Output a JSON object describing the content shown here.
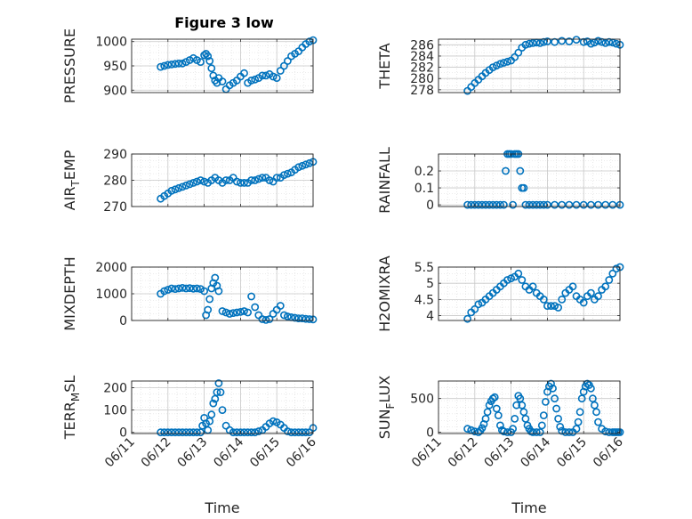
{
  "chart_data": [
    {
      "type": "scatter",
      "title": "Figure 3 low",
      "ylabel": "PRESSURE",
      "xlabel": "",
      "xlim": [
        0,
        5
      ],
      "ylim": [
        895,
        1005
      ],
      "yticks": [
        900,
        950,
        1000
      ],
      "xticks": [
        0,
        1,
        2,
        3,
        4,
        5
      ],
      "xticklabels": [
        "",
        "",
        "",
        "",
        "",
        ""
      ],
      "grid": true,
      "marker_color": "#0072bd",
      "x": [
        0.8,
        0.9,
        1.0,
        1.1,
        1.2,
        1.3,
        1.4,
        1.5,
        1.6,
        1.7,
        1.8,
        1.9,
        2.0,
        2.05,
        2.1,
        2.15,
        2.2,
        2.25,
        2.3,
        2.35,
        2.4,
        2.5,
        2.6,
        2.7,
        2.8,
        2.9,
        3.0,
        3.1,
        3.2,
        3.3,
        3.4,
        3.5,
        3.6,
        3.7,
        3.8,
        3.9,
        4.0,
        4.1,
        4.2,
        4.3,
        4.4,
        4.5,
        4.6,
        4.7,
        4.8,
        4.9,
        5.0
      ],
      "y": [
        948,
        950,
        952,
        953,
        954,
        955,
        955,
        958,
        962,
        966,
        962,
        958,
        972,
        975,
        970,
        960,
        945,
        930,
        920,
        915,
        925,
        918,
        902,
        910,
        915,
        920,
        928,
        935,
        915,
        920,
        922,
        925,
        930,
        930,
        933,
        928,
        925,
        940,
        950,
        960,
        970,
        975,
        980,
        988,
        995,
        1000,
        1003
      ]
    },
    {
      "type": "scatter",
      "ylabel": "THETA",
      "xlabel": "",
      "xlim": [
        0,
        5
      ],
      "ylim": [
        277.5,
        287
      ],
      "yticks": [
        278,
        280,
        282,
        284,
        286
      ],
      "xticks": [
        0,
        1,
        2,
        3,
        4,
        5
      ],
      "xticklabels": [
        "",
        "",
        "",
        "",
        "",
        ""
      ],
      "grid": true,
      "marker_color": "#0072bd",
      "x": [
        0.8,
        0.9,
        1.0,
        1.1,
        1.2,
        1.3,
        1.4,
        1.5,
        1.6,
        1.7,
        1.8,
        1.9,
        2.0,
        2.1,
        2.2,
        2.3,
        2.4,
        2.5,
        2.6,
        2.7,
        2.8,
        2.9,
        3.0,
        3.2,
        3.4,
        3.6,
        3.8,
        4.0,
        4.1,
        4.2,
        4.3,
        4.4,
        4.5,
        4.6,
        4.7,
        4.8,
        4.9,
        5.0
      ],
      "y": [
        277.8,
        278.5,
        279.2,
        279.8,
        280.4,
        281.0,
        281.5,
        282.0,
        282.3,
        282.6,
        282.8,
        283.0,
        283.2,
        283.8,
        284.6,
        285.5,
        286.0,
        286.2,
        286.3,
        286.4,
        286.3,
        286.5,
        286.6,
        286.5,
        286.7,
        286.6,
        286.9,
        286.5,
        286.6,
        286.2,
        286.4,
        286.7,
        286.5,
        286.3,
        286.5,
        286.4,
        286.2,
        286.0
      ]
    },
    {
      "type": "scatter",
      "ylabel": "AIR_TEMP",
      "ylabel_parts": [
        "AIR",
        "T",
        "EMP"
      ],
      "xlabel": "",
      "xlim": [
        0,
        5
      ],
      "ylim": [
        270,
        290
      ],
      "yticks": [
        270,
        280,
        290
      ],
      "xticks": [
        0,
        1,
        2,
        3,
        4,
        5
      ],
      "xticklabels": [
        "",
        "",
        "",
        "",
        "",
        ""
      ],
      "grid": true,
      "marker_color": "#0072bd",
      "x": [
        0.8,
        0.9,
        1.0,
        1.1,
        1.2,
        1.3,
        1.4,
        1.5,
        1.6,
        1.7,
        1.8,
        1.9,
        2.0,
        2.1,
        2.2,
        2.3,
        2.4,
        2.5,
        2.6,
        2.7,
        2.8,
        2.9,
        3.0,
        3.1,
        3.2,
        3.3,
        3.4,
        3.5,
        3.6,
        3.7,
        3.8,
        3.9,
        4.0,
        4.1,
        4.2,
        4.3,
        4.4,
        4.5,
        4.6,
        4.7,
        4.8,
        4.9,
        5.0
      ],
      "y": [
        273,
        274,
        275,
        276,
        276.5,
        277,
        277.5,
        278,
        278.5,
        279,
        279.5,
        280,
        279.5,
        279,
        280,
        281,
        280,
        279,
        280,
        280,
        281,
        279.5,
        279,
        279,
        279,
        280,
        280,
        280.5,
        281,
        281,
        280,
        279.5,
        281,
        281,
        282,
        282.5,
        283,
        284,
        285,
        285.5,
        286,
        286.5,
        287
      ]
    },
    {
      "type": "scatter",
      "ylabel": "RAINFALL",
      "xlabel": "",
      "xlim": [
        0,
        5
      ],
      "ylim": [
        -0.01,
        0.3
      ],
      "yticks": [
        0,
        0.1,
        0.2
      ],
      "xticks": [
        0,
        1,
        2,
        3,
        4,
        5
      ],
      "xticklabels": [
        "",
        "",
        "",
        "",
        "",
        ""
      ],
      "grid": true,
      "marker_color": "#0072bd",
      "x": [
        0.8,
        0.9,
        1.0,
        1.1,
        1.2,
        1.3,
        1.4,
        1.5,
        1.6,
        1.7,
        1.8,
        1.85,
        1.9,
        1.95,
        2.0,
        2.05,
        2.1,
        2.15,
        2.2,
        2.25,
        2.3,
        2.35,
        2.4,
        2.5,
        2.6,
        2.7,
        2.8,
        2.9,
        3.0,
        3.2,
        3.4,
        3.6,
        3.8,
        4.0,
        4.2,
        4.4,
        4.6,
        4.8,
        5.0
      ],
      "y": [
        0,
        0,
        0,
        0,
        0,
        0,
        0,
        0,
        0,
        0,
        0,
        0.2,
        0.3,
        0.3,
        0.3,
        0,
        0.3,
        0.3,
        0.3,
        0.2,
        0.1,
        0.1,
        0,
        0,
        0,
        0,
        0,
        0,
        0,
        0,
        0,
        0,
        0,
        0,
        0,
        0,
        0,
        0,
        0
      ]
    },
    {
      "type": "scatter",
      "ylabel": "MIXDEPTH",
      "xlabel": "",
      "xlim": [
        0,
        5
      ],
      "ylim": [
        0,
        2000
      ],
      "yticks": [
        0,
        1000,
        2000
      ],
      "xticks": [
        0,
        1,
        2,
        3,
        4,
        5
      ],
      "xticklabels": [
        "",
        "",
        "",
        "",
        "",
        ""
      ],
      "grid": true,
      "marker_color": "#0072bd",
      "x": [
        0.8,
        0.9,
        1.0,
        1.1,
        1.2,
        1.3,
        1.4,
        1.5,
        1.6,
        1.7,
        1.8,
        1.9,
        2.0,
        2.05,
        2.1,
        2.15,
        2.2,
        2.25,
        2.3,
        2.35,
        2.4,
        2.5,
        2.6,
        2.7,
        2.8,
        2.9,
        3.0,
        3.1,
        3.2,
        3.3,
        3.4,
        3.5,
        3.6,
        3.7,
        3.8,
        3.9,
        4.0,
        4.1,
        4.2,
        4.3,
        4.4,
        4.5,
        4.6,
        4.7,
        4.8,
        4.9,
        5.0
      ],
      "y": [
        1000,
        1100,
        1150,
        1200,
        1180,
        1200,
        1220,
        1200,
        1210,
        1190,
        1200,
        1180,
        1100,
        200,
        400,
        800,
        1200,
        1400,
        1600,
        1300,
        1100,
        350,
        300,
        250,
        280,
        300,
        320,
        350,
        300,
        900,
        500,
        200,
        50,
        20,
        50,
        250,
        400,
        550,
        200,
        150,
        120,
        100,
        80,
        80,
        60,
        50,
        40
      ]
    },
    {
      "type": "scatter",
      "ylabel": "H2OMIXRA",
      "xlabel": "",
      "xlim": [
        0,
        5
      ],
      "ylim": [
        3.85,
        5.5
      ],
      "yticks": [
        4,
        4.5,
        5,
        5.5
      ],
      "xticks": [
        0,
        1,
        2,
        3,
        4,
        5
      ],
      "xticklabels": [
        "",
        "",
        "",
        "",
        "",
        ""
      ],
      "grid": true,
      "marker_color": "#0072bd",
      "x": [
        0.8,
        0.9,
        1.0,
        1.1,
        1.2,
        1.3,
        1.4,
        1.5,
        1.6,
        1.7,
        1.8,
        1.9,
        2.0,
        2.1,
        2.2,
        2.3,
        2.4,
        2.5,
        2.6,
        2.7,
        2.8,
        2.9,
        3.0,
        3.1,
        3.2,
        3.3,
        3.4,
        3.5,
        3.6,
        3.7,
        3.8,
        3.9,
        4.0,
        4.1,
        4.2,
        4.3,
        4.4,
        4.5,
        4.6,
        4.7,
        4.8,
        4.9,
        5.0
      ],
      "y": [
        3.9,
        4.1,
        4.2,
        4.35,
        4.4,
        4.5,
        4.6,
        4.7,
        4.8,
        4.9,
        5.0,
        5.1,
        5.15,
        5.2,
        5.3,
        5.1,
        4.9,
        4.8,
        4.9,
        4.7,
        4.6,
        4.5,
        4.3,
        4.3,
        4.3,
        4.25,
        4.5,
        4.7,
        4.8,
        4.9,
        4.6,
        4.5,
        4.4,
        4.6,
        4.7,
        4.5,
        4.6,
        4.8,
        4.9,
        5.1,
        5.3,
        5.45,
        5.5
      ]
    },
    {
      "type": "scatter",
      "ylabel": "TERR_MSL",
      "ylabel_parts": [
        "TERR",
        "M",
        "SL"
      ],
      "xlabel": "Time",
      "xlim": [
        0,
        5
      ],
      "ylim": [
        -5,
        230
      ],
      "yticks": [
        0,
        100,
        200
      ],
      "xticks": [
        0,
        1,
        2,
        3,
        4,
        5
      ],
      "xticklabels": [
        "06/11",
        "06/12",
        "06/13",
        "06/14",
        "06/15",
        "06/16"
      ],
      "grid": true,
      "marker_color": "#0072bd",
      "x": [
        0.8,
        0.9,
        1.0,
        1.1,
        1.2,
        1.3,
        1.4,
        1.5,
        1.6,
        1.7,
        1.8,
        1.9,
        1.95,
        2.0,
        2.05,
        2.1,
        2.15,
        2.2,
        2.25,
        2.3,
        2.35,
        2.4,
        2.45,
        2.5,
        2.6,
        2.7,
        2.8,
        2.9,
        3.0,
        3.1,
        3.2,
        3.3,
        3.4,
        3.5,
        3.6,
        3.7,
        3.8,
        3.9,
        4.0,
        4.1,
        4.2,
        4.3,
        4.4,
        4.5,
        4.6,
        4.7,
        4.8,
        4.9,
        5.0
      ],
      "y": [
        0,
        0,
        0,
        0,
        0,
        0,
        0,
        0,
        0,
        0,
        0,
        0,
        30,
        65,
        40,
        10,
        50,
        80,
        130,
        150,
        180,
        220,
        180,
        100,
        30,
        10,
        0,
        0,
        0,
        0,
        0,
        0,
        0,
        5,
        10,
        25,
        40,
        50,
        45,
        35,
        20,
        5,
        0,
        0,
        0,
        0,
        0,
        0,
        20
      ]
    },
    {
      "type": "scatter",
      "ylabel": "SUN_FLUX",
      "ylabel_parts": [
        "SUN",
        "F",
        "LUX"
      ],
      "xlabel": "Time",
      "xlim": [
        0,
        5
      ],
      "ylim": [
        -20,
        760
      ],
      "yticks": [
        0,
        500
      ],
      "xticks": [
        0,
        1,
        2,
        3,
        4,
        5
      ],
      "xticklabels": [
        "06/11",
        "06/12",
        "06/13",
        "06/14",
        "06/15",
        "06/16"
      ],
      "grid": true,
      "marker_color": "#0072bd",
      "x": [
        0.8,
        0.9,
        1.0,
        1.1,
        1.15,
        1.2,
        1.25,
        1.3,
        1.35,
        1.4,
        1.45,
        1.5,
        1.55,
        1.6,
        1.65,
        1.7,
        1.75,
        1.8,
        1.9,
        2.0,
        2.05,
        2.1,
        2.15,
        2.2,
        2.25,
        2.3,
        2.35,
        2.4,
        2.45,
        2.5,
        2.55,
        2.6,
        2.7,
        2.8,
        2.85,
        2.9,
        2.95,
        3.0,
        3.05,
        3.1,
        3.15,
        3.2,
        3.25,
        3.3,
        3.35,
        3.4,
        3.5,
        3.6,
        3.7,
        3.8,
        3.85,
        3.9,
        3.95,
        4.0,
        4.05,
        4.1,
        4.15,
        4.2,
        4.25,
        4.3,
        4.35,
        4.4,
        4.5,
        4.6,
        4.7,
        4.8,
        4.85,
        4.9,
        4.95,
        5.0
      ],
      "y": [
        50,
        30,
        10,
        0,
        20,
        60,
        120,
        200,
        300,
        400,
        460,
        500,
        520,
        350,
        250,
        100,
        30,
        10,
        0,
        0,
        50,
        200,
        400,
        540,
        500,
        400,
        300,
        200,
        100,
        50,
        10,
        0,
        0,
        0,
        100,
        250,
        450,
        600,
        680,
        720,
        650,
        500,
        350,
        200,
        80,
        20,
        0,
        0,
        0,
        50,
        150,
        300,
        500,
        600,
        680,
        720,
        700,
        650,
        500,
        400,
        300,
        150,
        50,
        10,
        0,
        0,
        0,
        0,
        0,
        0
      ]
    }
  ]
}
